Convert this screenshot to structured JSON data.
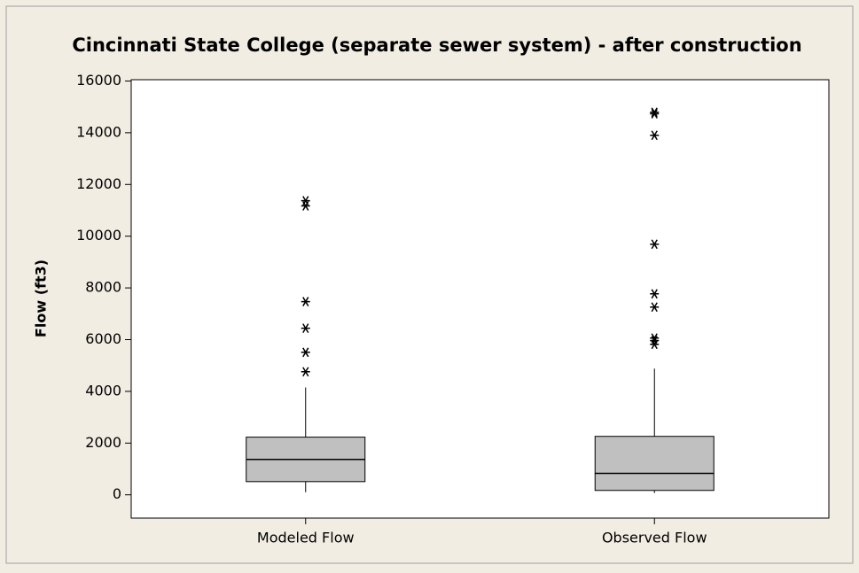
{
  "chart_data": {
    "type": "boxplot",
    "title": "Cincinnati State College (separate sewer system) - after construction",
    "y_label": "Flow (ft3)",
    "categories": [
      "Modeled Flow",
      "Observed Flow"
    ],
    "color": "#c0c0c0",
    "boxes": [
      {
        "whisker_low": 100,
        "q1": 510,
        "median": 1370,
        "q3": 2230,
        "whisker_high": 4150,
        "outliers": [
          4760,
          5510,
          6440,
          7470,
          11170,
          11370
        ]
      },
      {
        "whisker_low": 70,
        "q1": 170,
        "median": 830,
        "q3": 2260,
        "whisker_high": 4880,
        "outliers": [
          5820,
          5960,
          6060,
          7260,
          7770,
          9690,
          13900,
          14730,
          14790
        ]
      }
    ],
    "ylim": [
      -900,
      16050
    ],
    "yticks": [
      0,
      2000,
      4000,
      6000,
      8000,
      10000,
      12000,
      14000,
      16000
    ]
  }
}
